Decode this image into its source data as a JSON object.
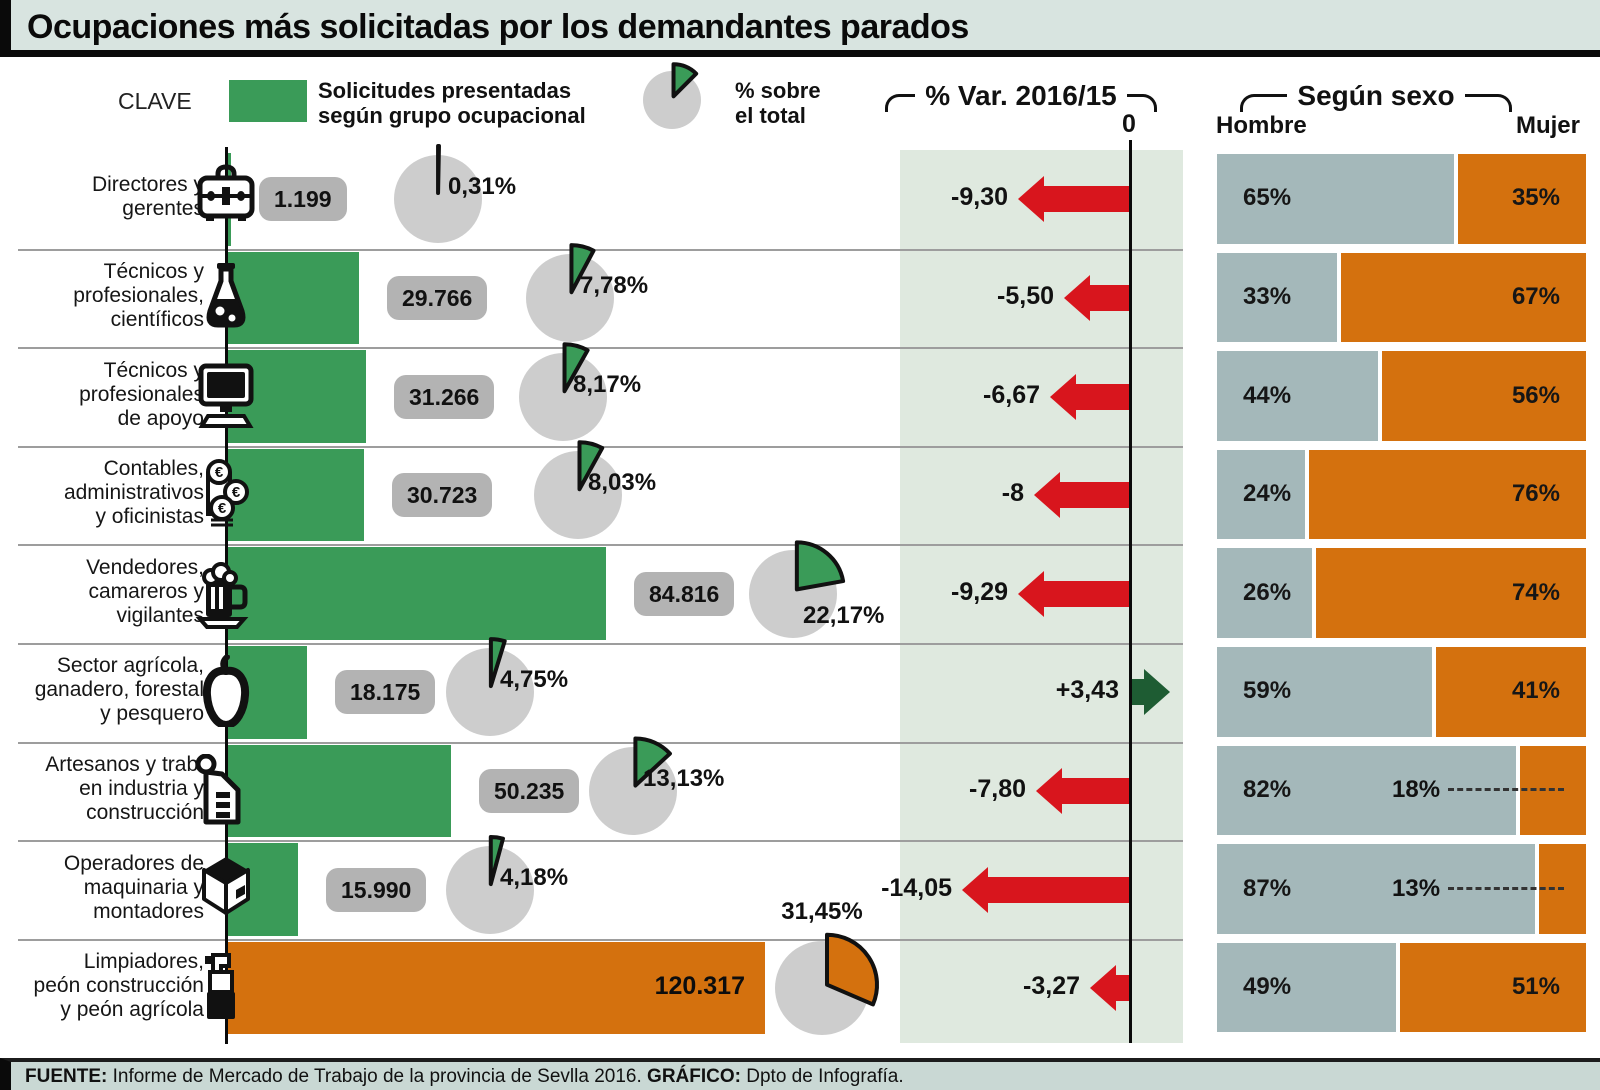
{
  "title": "Ocupaciones más solicitadas por los demandantes parados",
  "legend": {
    "clave_label": "CLAVE",
    "bar_label": "Solicitudes presentadas\nsegún grupo ocupacional",
    "pie_label": "% sobre\nel total"
  },
  "headers": {
    "var_header": "% Var. 2016/15",
    "zero_label": "0",
    "sex_header": "Según sexo",
    "hombre_label": "Hombre",
    "mujer_label": "Mujer"
  },
  "footer": {
    "fuente_label": "FUENTE:",
    "fuente_text": " Informe de Mercado de Trabajo de la provincia de Sevlla 2016. ",
    "grafico_label": "GRÁFICO:",
    "grafico_text": " Dpto de Infografía."
  },
  "colors": {
    "green_bar": "#3a9b58",
    "orange": "#d4710e",
    "hombre_gray": "#a4b8ba",
    "pie_gray": "#cdcdcd",
    "badge_gray": "#b3b3b3",
    "red_arrow": "#d8151d",
    "dark_green_arrow": "#1e5c33",
    "var_band": "#dfe9df"
  },
  "chart_data": {
    "type": "bar",
    "title": "Ocupaciones más solicitadas por los demandantes parados",
    "series_note": "Solicitudes presentadas según grupo ocupacional; % sobre el total; % Var. 2016/15; reparto por sexo",
    "legend_pie_pct": 12.5,
    "rows": [
      {
        "label": "Directores y\ngerentes",
        "icon": "briefcase",
        "solicitudes": 1199,
        "solicitudes_label": "1.199",
        "pct_total": 0.31,
        "pct_label": "0,31%",
        "var": -9.3,
        "var_label": "-9,30",
        "hombre": 65,
        "hombre_label": "65%",
        "mujer": 35,
        "mujer_label": "35%",
        "bar_color": "green"
      },
      {
        "label": "Técnicos y\nprofesionales,\ncientíficos",
        "icon": "flask",
        "solicitudes": 29766,
        "solicitudes_label": "29.766",
        "pct_total": 7.78,
        "pct_label": "7,78%",
        "var": -5.5,
        "var_label": "-5,50",
        "hombre": 33,
        "hombre_label": "33%",
        "mujer": 67,
        "mujer_label": "67%",
        "bar_color": "green"
      },
      {
        "label": "Técnicos y\nprofesionales\nde apoyo",
        "icon": "monitor",
        "solicitudes": 31266,
        "solicitudes_label": "31.266",
        "pct_total": 8.17,
        "pct_label": "8,17%",
        "var": -6.67,
        "var_label": "-6,67",
        "hombre": 44,
        "hombre_label": "44%",
        "mujer": 56,
        "mujer_label": "56%",
        "bar_color": "green"
      },
      {
        "label": "Contables,\nadministrativos\ny oficinistas",
        "icon": "coins",
        "solicitudes": 30723,
        "solicitudes_label": "30.723",
        "pct_total": 8.03,
        "pct_label": "8,03%",
        "var": -8,
        "var_label": "-8",
        "hombre": 24,
        "hombre_label": "24%",
        "mujer": 76,
        "mujer_label": "76%",
        "bar_color": "green"
      },
      {
        "label": "Vendedores,\ncamareros y\nvigilantes",
        "icon": "beer",
        "solicitudes": 84816,
        "solicitudes_label": "84.816",
        "pct_total": 22.17,
        "pct_label": "22,17%",
        "var": -9.29,
        "var_label": "-9,29",
        "hombre": 26,
        "hombre_label": "26%",
        "mujer": 74,
        "mujer_label": "74%",
        "bar_color": "green"
      },
      {
        "label": "Sector agrícola,\nganadero, forestal\ny pesquero",
        "icon": "pepper",
        "solicitudes": 18175,
        "solicitudes_label": "18.175",
        "pct_total": 4.75,
        "pct_label": "4,75%",
        "var": 3.43,
        "var_label": "+3,43",
        "hombre": 59,
        "hombre_label": "59%",
        "mujer": 41,
        "mujer_label": "41%",
        "bar_color": "green"
      },
      {
        "label": "Artesanos y trab.\nen industria y\nconstrucción",
        "icon": "paper",
        "solicitudes": 50235,
        "solicitudes_label": "50.235",
        "pct_total": 13.13,
        "pct_label": "13,13%",
        "var": -7.8,
        "var_label": "-7,80",
        "hombre": 82,
        "hombre_label": "82%",
        "mujer": 18,
        "mujer_label": "18%",
        "bar_color": "green"
      },
      {
        "label": "Operadores de\nmaquinaria y\nmontadores",
        "icon": "box",
        "solicitudes": 15990,
        "solicitudes_label": "15.990",
        "pct_total": 4.18,
        "pct_label": "4,18%",
        "var": -14.05,
        "var_label": "-14,05",
        "hombre": 87,
        "hombre_label": "87%",
        "mujer": 13,
        "mujer_label": "13%",
        "bar_color": "green"
      },
      {
        "label": "Limpiadores,\npeón construcción\ny peón agrícola",
        "icon": "spray",
        "solicitudes": 120317,
        "solicitudes_label": "120.317",
        "pct_total": 31.45,
        "pct_label": "31,45%",
        "var": -3.27,
        "var_label": "-3,27",
        "hombre": 49,
        "hombre_label": "49%",
        "mujer": 51,
        "mujer_label": "51%",
        "bar_color": "orange"
      }
    ]
  }
}
